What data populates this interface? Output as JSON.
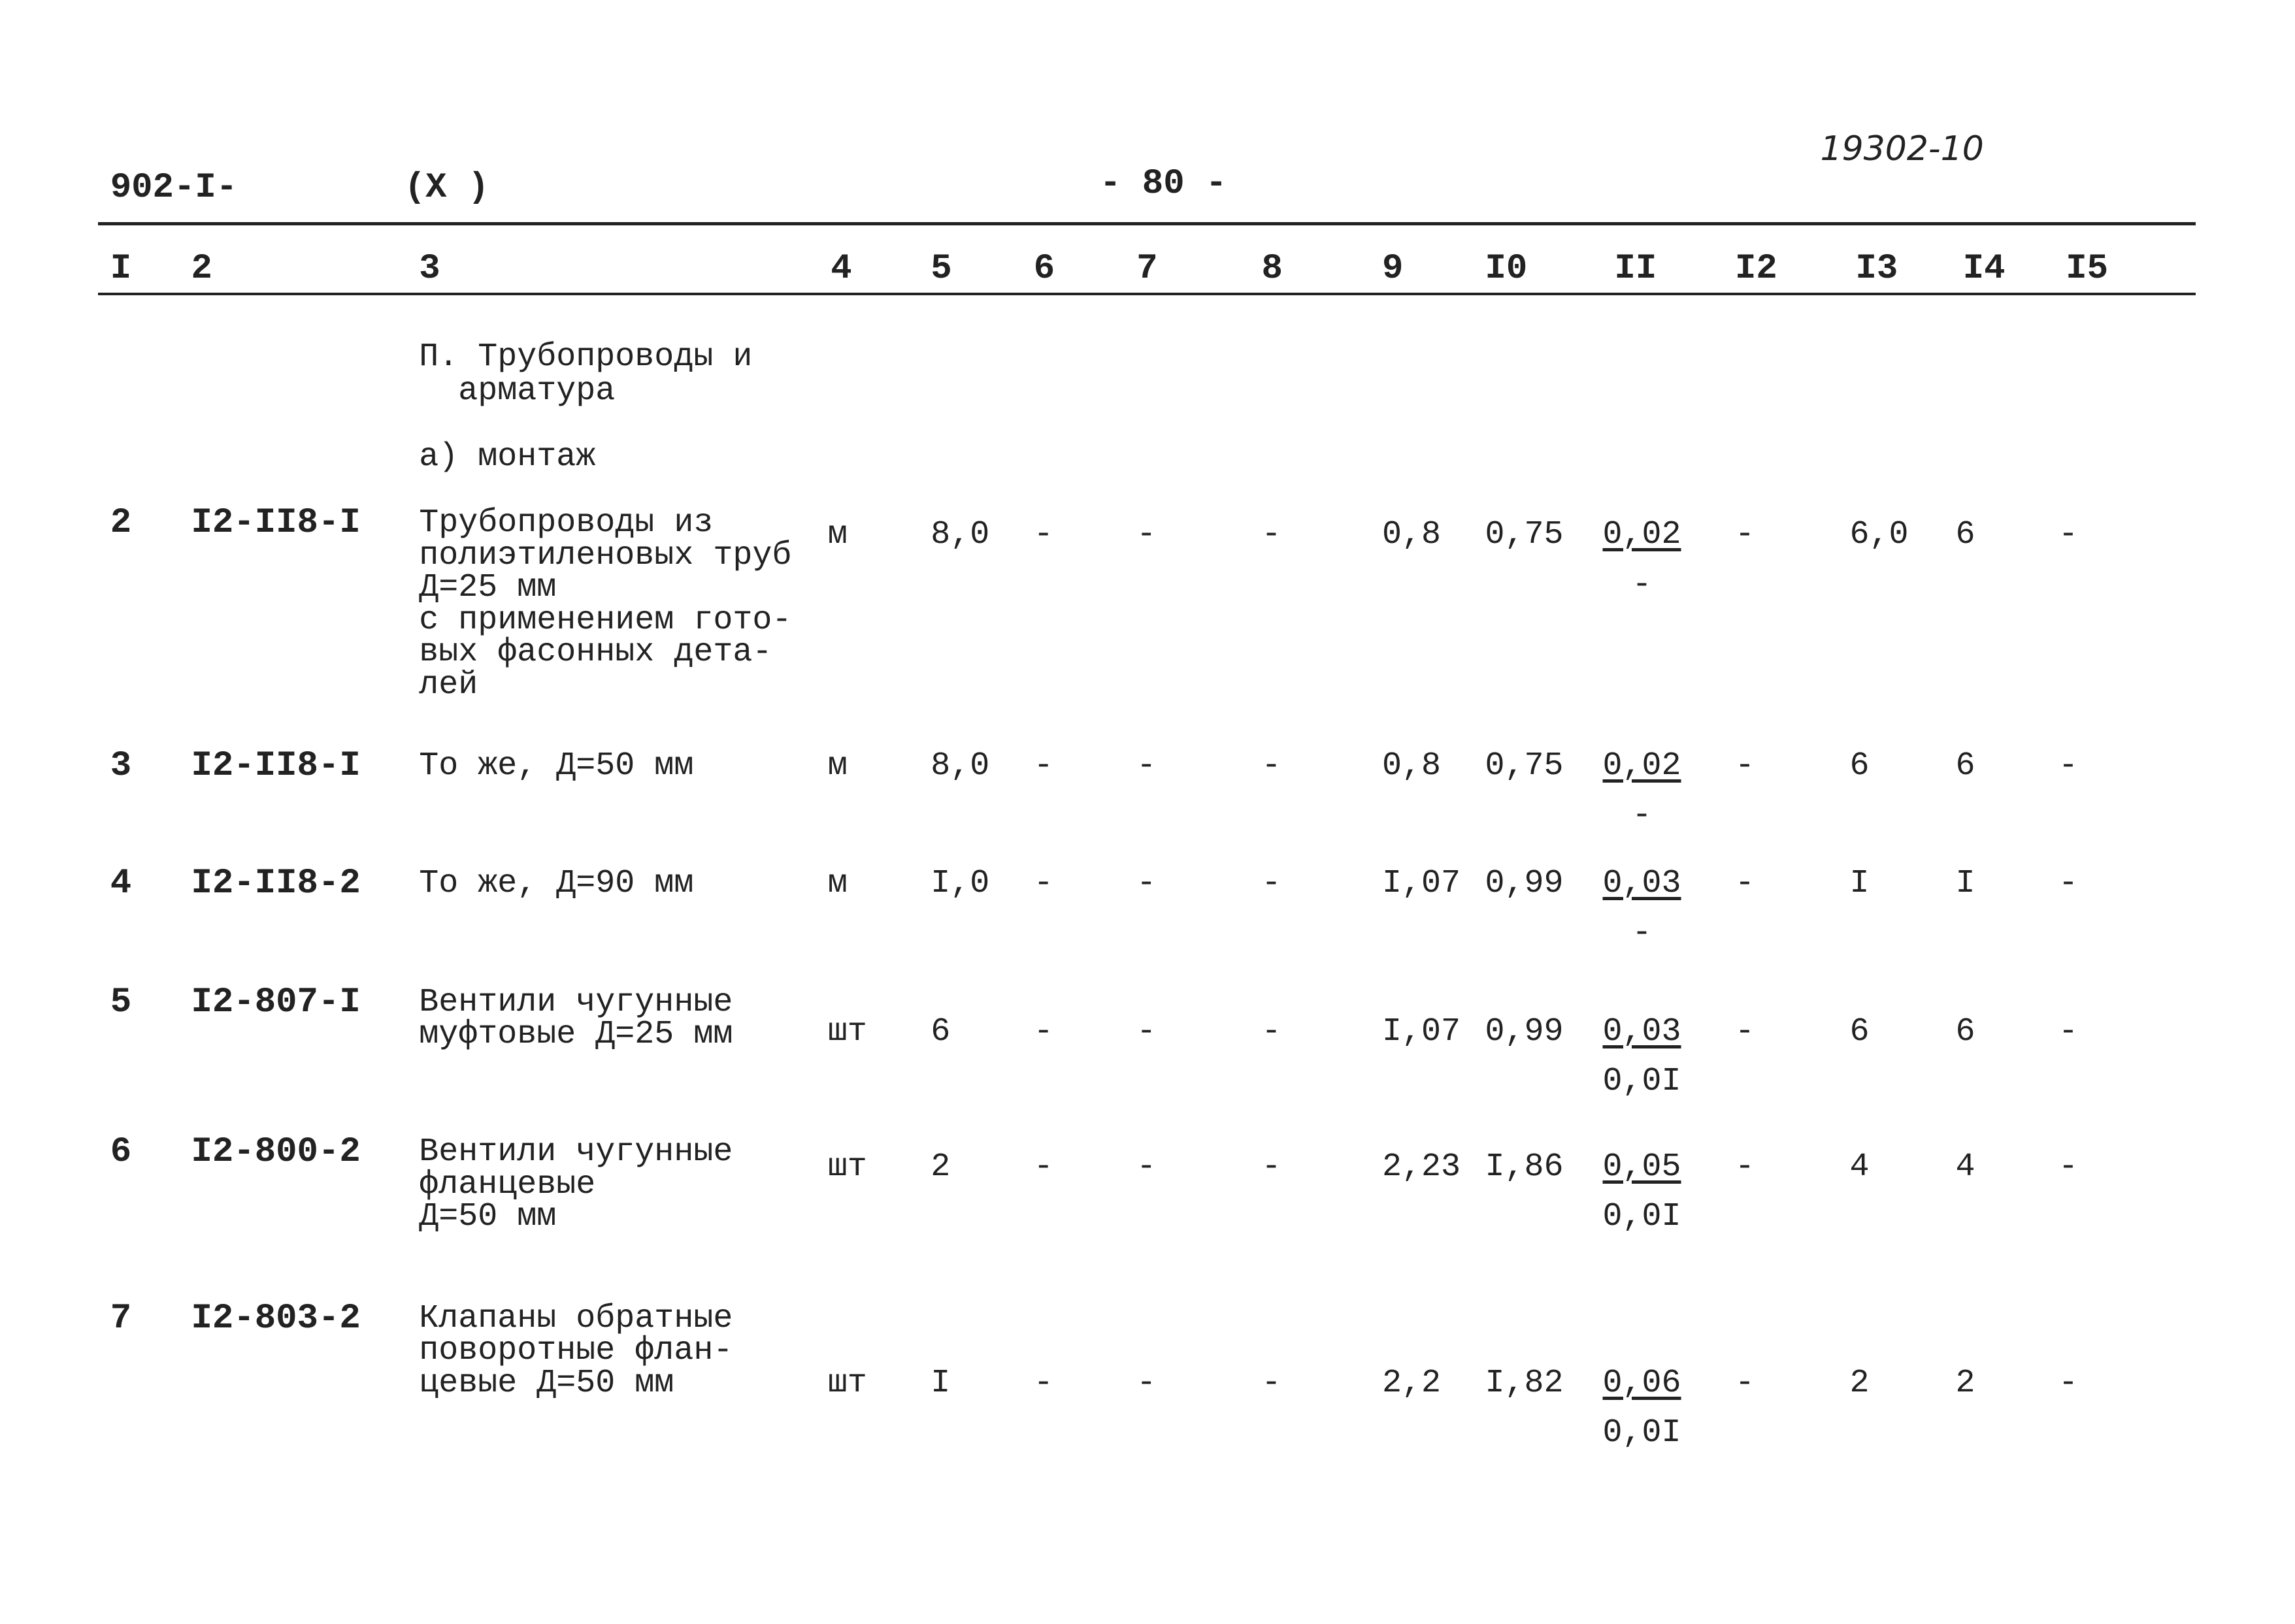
{
  "header": {
    "code": "902-I-",
    "mark": "(X )",
    "page": "- 80 -",
    "stamp": "19302-10"
  },
  "columns": [
    "I",
    "2",
    "3",
    "4",
    "5",
    "6",
    "7",
    "8",
    "9",
    "I0",
    "II",
    "I2",
    "I3",
    "I4",
    "I5"
  ],
  "section": {
    "title": [
      "П. Трубопроводы и",
      "  арматура"
    ],
    "subtitle": "а) монтаж"
  },
  "rows": [
    {
      "num": "2",
      "code": "I2-II8-I",
      "name": [
        "Трубопроводы из",
        "полиэтиленовых труб",
        "Д=25 мм",
        "с применением гото-",
        "вых фасонных дета-",
        "лей"
      ],
      "unit": "м",
      "c5": "8,0",
      "c6": "-",
      "c7": "-",
      "c8": "-",
      "c9": "0,8",
      "c10": "0,75",
      "c11_top": "0,02",
      "c11_bottom": "-",
      "c12": "-",
      "c13": "6,0",
      "c14": "6",
      "c15": "-"
    },
    {
      "num": "3",
      "code": "I2-II8-I",
      "name": [
        "То же, Д=50 мм"
      ],
      "unit": "м",
      "c5": "8,0",
      "c6": "-",
      "c7": "-",
      "c8": "-",
      "c9": "0,8",
      "c10": "0,75",
      "c11_top": "0,02",
      "c11_bottom": "-",
      "c12": "-",
      "c13": "6",
      "c14": "6",
      "c15": "-"
    },
    {
      "num": "4",
      "code": "I2-II8-2",
      "name": [
        "То же, Д=90 мм"
      ],
      "unit": "м",
      "c5": "I,0",
      "c6": "-",
      "c7": "-",
      "c8": "-",
      "c9": "I,07",
      "c10": "0,99",
      "c11_top": "0,03",
      "c11_bottom": "-",
      "c12": "-",
      "c13": "I",
      "c14": "I",
      "c15": "-"
    },
    {
      "num": "5",
      "code": "I2-807-I",
      "name": [
        "Вентили чугунные",
        "муфтовые Д=25 мм"
      ],
      "unit": "шт",
      "c5": "6",
      "c6": "-",
      "c7": "-",
      "c8": "-",
      "c9": "I,07",
      "c10": "0,99",
      "c11_top": "0,03",
      "c11_bottom": "0,0I",
      "c12": "-",
      "c13": "6",
      "c14": "6",
      "c15": "-"
    },
    {
      "num": "6",
      "code": "I2-800-2",
      "name": [
        "Вентили чугунные",
        "фланцевые",
        "Д=50 мм"
      ],
      "unit": "шт",
      "c5": "2",
      "c6": "-",
      "c7": "-",
      "c8": "-",
      "c9": "2,23",
      "c10": "I,86",
      "c11_top": "0,05",
      "c11_bottom": "0,0I",
      "c12": "-",
      "c13": "4",
      "c14": "4",
      "c15": "-"
    },
    {
      "num": "7",
      "code": "I2-803-2",
      "name": [
        "Клапаны обратные",
        "поворотные флан-",
        "цевые Д=50 мм"
      ],
      "unit": "шт",
      "c5": "I",
      "c6": "-",
      "c7": "-",
      "c8": "-",
      "c9": "2,2",
      "c10": "I,82",
      "c11_top": "0,06",
      "c11_bottom": "0,0I",
      "c12": "-",
      "c13": "2",
      "c14": "2",
      "c15": "-"
    }
  ]
}
